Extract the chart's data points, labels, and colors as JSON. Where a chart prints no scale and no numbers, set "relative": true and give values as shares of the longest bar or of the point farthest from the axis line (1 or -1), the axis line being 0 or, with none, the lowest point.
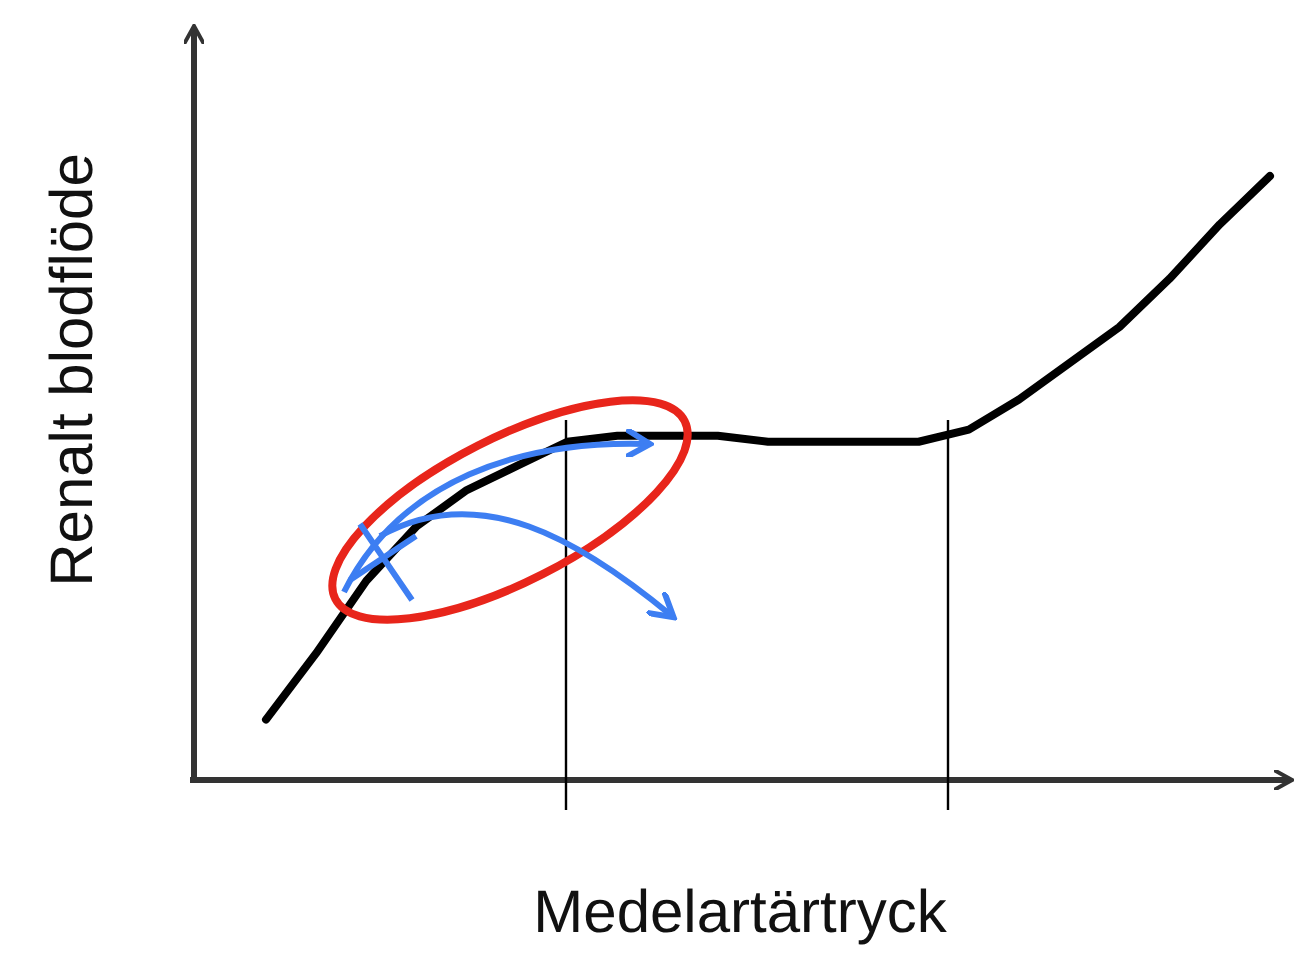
{
  "chart_data": {
    "type": "line",
    "relative": true,
    "xlabel": "Medelartärtryck",
    "ylabel": "Renalt blodflöde",
    "categories": [
      null,
      null,
      null,
      null,
      null,
      null,
      null,
      null,
      null,
      null,
      null,
      null,
      null,
      null,
      null,
      null,
      null,
      null,
      null,
      null,
      null
    ],
    "series": [
      {
        "color": "#000000",
        "values": [
          0.1,
          0.21,
          0.33,
          0.42,
          0.48,
          0.52,
          0.56,
          0.57,
          0.57,
          0.57,
          0.56,
          0.56,
          0.56,
          0.56,
          0.58,
          0.63,
          0.69,
          0.75,
          0.83,
          0.92,
          1.0
        ]
      }
    ]
  }
}
